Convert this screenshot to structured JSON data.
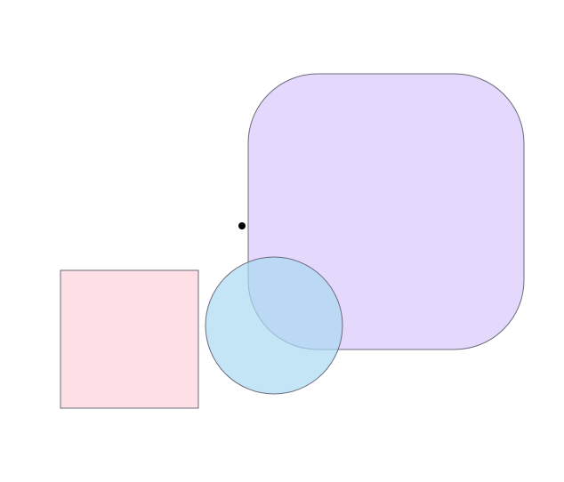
{
  "diagram": {
    "background": "#ffffff",
    "stroke_color": "#6b6b7b",
    "shapes": [
      {
        "id": "rounded-square",
        "kind": "rounded-rect",
        "fill": "#e4d8fc",
        "opacity": 1
      },
      {
        "id": "pink-square",
        "kind": "rect",
        "fill": "#ffdfe6",
        "opacity": 1
      },
      {
        "id": "blue-circle",
        "kind": "circle",
        "fill": "#a9daf2",
        "opacity": 0.7
      },
      {
        "id": "black-dot",
        "kind": "dot",
        "fill": "#000000",
        "opacity": 1
      }
    ]
  }
}
